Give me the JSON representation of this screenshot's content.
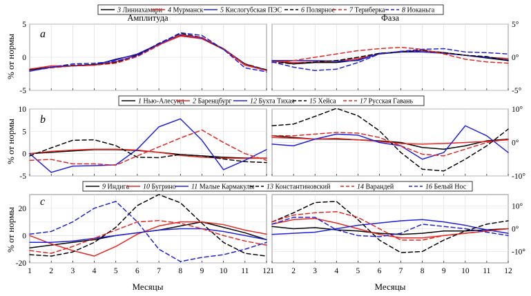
{
  "x_axis": {
    "label": "Месяцы",
    "ticks": [
      "1",
      "2",
      "3",
      "4",
      "5",
      "6",
      "7",
      "8",
      "9",
      "10",
      "11",
      "12"
    ]
  },
  "y_axis_label": "% от нормы",
  "chart_data": [
    {
      "type": "line",
      "panel": "a",
      "title": "Амплитуда",
      "ylim": [
        -5,
        5
      ],
      "yticks": [
        "-5",
        "0",
        "5"
      ],
      "x": [
        1,
        2,
        3,
        4,
        5,
        6,
        7,
        8,
        9,
        10,
        11,
        12
      ],
      "legend": [
        {
          "num": "3",
          "name": "Линиахамари",
          "color": "#000000",
          "dash": false
        },
        {
          "num": "4",
          "name": "Мурманск",
          "color": "#e8251f",
          "dash": false
        },
        {
          "num": "5",
          "name": "Кислогубская ПЭС",
          "color": "#1f1fe0",
          "dash": false
        },
        {
          "num": "6",
          "name": "Полярное",
          "color": "#000000",
          "dash": true
        },
        {
          "num": "7",
          "name": "Териберка",
          "color": "#e8251f",
          "dash": true
        },
        {
          "num": "8",
          "name": "Иоканьга",
          "color": "#1f1fe0",
          "dash": true
        }
      ],
      "series": [
        {
          "name": "3 Линиахамари",
          "color": "#000000",
          "dash": false,
          "values": [
            -1.9,
            -1.5,
            -1.3,
            -1.2,
            -0.3,
            0.4,
            1.9,
            3.3,
            2.8,
            1.2,
            -1.1,
            -1.9
          ]
        },
        {
          "name": "4 Мурманск",
          "color": "#e8251f",
          "dash": false,
          "values": [
            -1.8,
            -1.3,
            -1.3,
            -1.2,
            -0.7,
            0.3,
            1.9,
            3.2,
            2.8,
            1.2,
            -1.2,
            -2.0
          ]
        },
        {
          "name": "5 Кислогубская ПЭС",
          "color": "#1f1fe0",
          "dash": false,
          "values": [
            -2.1,
            -1.5,
            -1.3,
            -1.1,
            -0.4,
            0.5,
            2.0,
            3.4,
            2.9,
            1.3,
            -1.0,
            -2.0
          ]
        },
        {
          "name": "6 Полярное",
          "color": "#000000",
          "dash": true,
          "values": [
            -1.9,
            -1.5,
            -1.2,
            -1.1,
            -0.8,
            0.3,
            2.1,
            3.6,
            3.0,
            1.2,
            -1.0,
            -1.9
          ]
        },
        {
          "name": "7 Териберка",
          "color": "#e8251f",
          "dash": true,
          "values": [
            -2.0,
            -1.6,
            -1.3,
            -1.2,
            -0.9,
            0.1,
            1.8,
            3.4,
            3.0,
            1.3,
            -1.1,
            -2.0
          ]
        },
        {
          "name": "8 Иоканьга",
          "color": "#1f1fe0",
          "dash": true,
          "values": [
            -2.1,
            -1.5,
            -1.0,
            -0.9,
            -0.6,
            0.2,
            2.0,
            3.7,
            3.3,
            1.2,
            -1.6,
            -2.2
          ]
        }
      ]
    },
    {
      "type": "line",
      "panel": "a",
      "title": "Фаза",
      "ylim": [
        -5,
        5
      ],
      "yticks": [
        "-5°",
        "0°",
        "5°"
      ],
      "x": [
        1,
        2,
        3,
        4,
        5,
        6,
        7,
        8,
        9,
        10,
        11,
        12
      ],
      "series": [
        {
          "name": "3 Линиахамари",
          "color": "#000000",
          "dash": false,
          "values": [
            -0.5,
            -1.0,
            -0.8,
            -0.8,
            -0.4,
            0.5,
            0.8,
            1.0,
            0.7,
            0.3,
            -0.1,
            -0.5
          ]
        },
        {
          "name": "4 Мурманск",
          "color": "#e8251f",
          "dash": false,
          "values": [
            -0.5,
            -0.8,
            -0.7,
            -0.6,
            -0.2,
            0.5,
            0.9,
            1.0,
            0.7,
            0.3,
            0.0,
            -0.2
          ]
        },
        {
          "name": "5 Кислогубская ПЭС",
          "color": "#1f1fe0",
          "dash": false,
          "values": [
            -0.5,
            -0.5,
            -0.5,
            -0.6,
            -0.5,
            0.6,
            0.8,
            0.8,
            0.6,
            0.3,
            0.0,
            -0.4
          ]
        },
        {
          "name": "6 Полярное",
          "color": "#000000",
          "dash": true,
          "values": [
            -0.7,
            -1.0,
            -0.7,
            -0.5,
            0.0,
            0.6,
            0.8,
            1.0,
            0.7,
            0.3,
            0.1,
            -0.5
          ]
        },
        {
          "name": "7 Териберка",
          "color": "#e8251f",
          "dash": true,
          "values": [
            -0.8,
            -0.5,
            0.0,
            0.5,
            1.0,
            1.3,
            1.5,
            1.2,
            0.5,
            -0.3,
            -0.7,
            -0.9
          ]
        },
        {
          "name": "8 Иоканьга",
          "color": "#1f1fe0",
          "dash": true,
          "values": [
            -0.7,
            -1.5,
            -2.0,
            -1.8,
            -0.8,
            0.5,
            0.9,
            1.2,
            1.3,
            0.8,
            0.7,
            0.5
          ]
        }
      ]
    },
    {
      "type": "line",
      "panel": "b",
      "title": "",
      "ylim": [
        -5,
        10
      ],
      "yticks": [
        "-5",
        "0",
        "5",
        "10"
      ],
      "x": [
        1,
        2,
        3,
        4,
        5,
        6,
        7,
        8,
        9,
        10,
        11,
        12
      ],
      "legend": [
        {
          "num": "1",
          "name": "Нью-Алесунд",
          "color": "#000000",
          "dash": false
        },
        {
          "num": "2",
          "name": "Баренцбург",
          "color": "#e8251f",
          "dash": false
        },
        {
          "num": "12",
          "name": "Бухта Тихая",
          "color": "#1f1fe0",
          "dash": false
        },
        {
          "num": "15",
          "name": "Хейса",
          "color": "#000000",
          "dash": true
        },
        {
          "num": "17",
          "name": "Русская Гавань",
          "color": "#e8251f",
          "dash": true
        }
      ],
      "series": [
        {
          "name": "1 Нью-Алесунд",
          "color": "#000000",
          "dash": false,
          "values": [
            0.0,
            0.3,
            0.6,
            0.9,
            0.9,
            0.7,
            0.3,
            -0.2,
            -0.5,
            -0.8,
            -1.0,
            -1.0
          ]
        },
        {
          "name": "2 Баренцбург",
          "color": "#e8251f",
          "dash": false,
          "values": [
            0.0,
            0.5,
            0.8,
            1.0,
            1.0,
            0.8,
            0.3,
            -0.4,
            -0.8,
            -1.0,
            -1.1,
            -1.0
          ]
        },
        {
          "name": "12 Бухта Тихая",
          "color": "#1f1fe0",
          "dash": false,
          "values": [
            0.0,
            -4.2,
            -2.8,
            -2.7,
            -2.5,
            1.0,
            6.0,
            7.8,
            3.0,
            -3.6,
            -1.5,
            0.9
          ]
        },
        {
          "name": "15 Хейса",
          "color": "#000000",
          "dash": true,
          "values": [
            -0.5,
            1.3,
            3.0,
            3.1,
            1.8,
            -0.8,
            -0.9,
            -0.2,
            -0.5,
            -1.2,
            -1.8,
            -2.0
          ]
        },
        {
          "name": "17 Русская Гавань",
          "color": "#e8251f",
          "dash": true,
          "values": [
            -1.5,
            -1.3,
            -2.3,
            -2.3,
            -2.6,
            -0.5,
            1.5,
            3.5,
            5.3,
            2.5,
            0.0,
            -1.5
          ]
        }
      ]
    },
    {
      "type": "line",
      "panel": "b",
      "title": "",
      "ylim": [
        -10,
        10
      ],
      "yticks": [
        "-10°",
        "0°",
        "10°"
      ],
      "x": [
        1,
        2,
        3,
        4,
        5,
        6,
        7,
        8,
        9,
        10,
        11,
        12
      ],
      "series": [
        {
          "name": "1 Нью-Алесунд",
          "color": "#000000",
          "dash": false,
          "values": [
            2.0,
            1.5,
            1.0,
            1.0,
            0.8,
            0.5,
            0.0,
            -1.5,
            -2.0,
            -1.0,
            0.5,
            1.0
          ]
        },
        {
          "name": "2 Баренцбург",
          "color": "#e8251f",
          "dash": false,
          "values": [
            1.5,
            1.3,
            1.0,
            1.2,
            0.8,
            0.3,
            -0.3,
            -0.5,
            -0.3,
            0.0,
            0.3,
            0.8
          ]
        },
        {
          "name": "12 Бухта Тихая",
          "color": "#1f1fe0",
          "dash": false,
          "values": [
            -0.5,
            -1.0,
            1.0,
            2.5,
            2.2,
            0.0,
            -1.0,
            -5.0,
            -3.0,
            5.0,
            2.0,
            -3.0
          ]
        },
        {
          "name": "15 Хейса",
          "color": "#000000",
          "dash": true,
          "values": [
            5.0,
            5.5,
            7.8,
            10.2,
            8.0,
            3.5,
            -3.0,
            -8.0,
            -8.5,
            -5.0,
            -1.0,
            4.0
          ]
        },
        {
          "name": "17 Русская Гавань",
          "color": "#e8251f",
          "dash": true,
          "values": [
            2.0,
            2.0,
            2.5,
            3.0,
            2.8,
            1.5,
            -1.0,
            -3.5,
            -4.0,
            -2.0,
            0.0,
            1.0
          ]
        }
      ]
    },
    {
      "type": "line",
      "panel": "c",
      "title": "",
      "ylim": [
        -20,
        30
      ],
      "yticks": [
        "-20",
        "0",
        "20"
      ],
      "x": [
        1,
        2,
        3,
        4,
        5,
        6,
        7,
        8,
        9,
        10,
        11,
        12
      ],
      "legend": [
        {
          "num": "9",
          "name": "Индига",
          "color": "#000000",
          "dash": false
        },
        {
          "num": "10",
          "name": "Бугрино",
          "color": "#e8251f",
          "dash": false
        },
        {
          "num": "11",
          "name": "Малые Кармакулы",
          "color": "#1f1fe0",
          "dash": false
        },
        {
          "num": "13",
          "name": "Константиновский",
          "color": "#000000",
          "dash": true
        },
        {
          "num": "14",
          "name": "Варандей",
          "color": "#e8251f",
          "dash": true
        },
        {
          "num": "16",
          "name": "Белый Нос",
          "color": "#1f1fe0",
          "dash": true
        }
      ],
      "series": [
        {
          "name": "9 Индига",
          "color": "#000000",
          "dash": false,
          "values": [
            -9.0,
            -7.0,
            -5.0,
            -3.0,
            0.0,
            2.0,
            4.0,
            7.0,
            10.0,
            6.0,
            2.0,
            -3.0
          ]
        },
        {
          "name": "10 Бугрино",
          "color": "#e8251f",
          "dash": false,
          "values": [
            0.0,
            -6.0,
            -11.0,
            -15.0,
            -8.0,
            1.0,
            7.0,
            10.0,
            10.0,
            8.0,
            4.0,
            1.0
          ]
        },
        {
          "name": "11 Малые Кармакулы",
          "color": "#1f1fe0",
          "dash": false,
          "values": [
            -5.0,
            -5.0,
            -4.0,
            -2.0,
            0.0,
            2.0,
            4.0,
            5.0,
            5.0,
            3.0,
            0.0,
            -3.0
          ]
        },
        {
          "name": "13 Константиновский",
          "color": "#000000",
          "dash": true,
          "values": [
            -14.0,
            -15.0,
            -12.0,
            -5.0,
            6.0,
            22.0,
            30.0,
            24.0,
            9.0,
            -5.0,
            -13.0,
            -15.0
          ]
        },
        {
          "name": "14 Варандей",
          "color": "#e8251f",
          "dash": true,
          "values": [
            -11.0,
            -13.0,
            -8.0,
            -2.0,
            4.0,
            10.0,
            11.0,
            9.0,
            5.0,
            0.0,
            -4.0,
            -7.0
          ]
        },
        {
          "name": "16 Белый Нос",
          "color": "#1f1fe0",
          "dash": true,
          "values": [
            1.0,
            3.0,
            10.0,
            20.0,
            25.0,
            10.0,
            -10.0,
            -19.0,
            -16.0,
            -14.0,
            -10.0,
            -5.0
          ]
        }
      ]
    },
    {
      "type": "line",
      "panel": "c",
      "title": "",
      "ylim": [
        -15,
        15
      ],
      "yticks": [
        "-10°",
        "0°",
        "10°"
      ],
      "ytick_values": [
        -10,
        0,
        10
      ],
      "x": [
        1,
        2,
        3,
        4,
        5,
        6,
        7,
        8,
        9,
        10,
        11,
        12
      ],
      "series": [
        {
          "name": "9 Индига",
          "color": "#000000",
          "dash": false,
          "values": [
            1.0,
            0.0,
            0.5,
            -0.5,
            -1.0,
            -2.0,
            -2.5,
            -2.0,
            -1.0,
            -1.0,
            -0.5,
            0.0
          ]
        },
        {
          "name": "10 Бугрино",
          "color": "#e8251f",
          "dash": false,
          "values": [
            2.0,
            4.0,
            4.5,
            2.5,
            0.0,
            -2.5,
            -4.0,
            -4.0,
            -3.0,
            -2.0,
            -1.0,
            0.0
          ]
        },
        {
          "name": "11 Малые Кармакулы",
          "color": "#1f1fe0",
          "dash": false,
          "values": [
            -2.5,
            -2.0,
            -1.5,
            0.0,
            1.5,
            2.5,
            3.5,
            4.0,
            3.0,
            1.5,
            -0.5,
            -2.0
          ]
        },
        {
          "name": "13 Константиновский",
          "color": "#000000",
          "dash": true,
          "values": [
            3.0,
            7.0,
            11.5,
            12.0,
            4.0,
            -5.0,
            -10.5,
            -10.0,
            -5.0,
            -1.0,
            2.0,
            3.5
          ]
        },
        {
          "name": "14 Варандей",
          "color": "#e8251f",
          "dash": true,
          "values": [
            3.0,
            6.0,
            7.0,
            7.5,
            5.0,
            0.0,
            -5.0,
            -5.0,
            -3.0,
            -2.0,
            -1.0,
            0.0
          ]
        },
        {
          "name": "16 Белый Нос",
          "color": "#1f1fe0",
          "dash": true,
          "values": [
            2.0,
            5.0,
            5.0,
            -0.5,
            -3.0,
            -3.5,
            -2.0,
            2.0,
            1.0,
            0.0,
            -1.5,
            -3.0
          ]
        }
      ]
    }
  ]
}
